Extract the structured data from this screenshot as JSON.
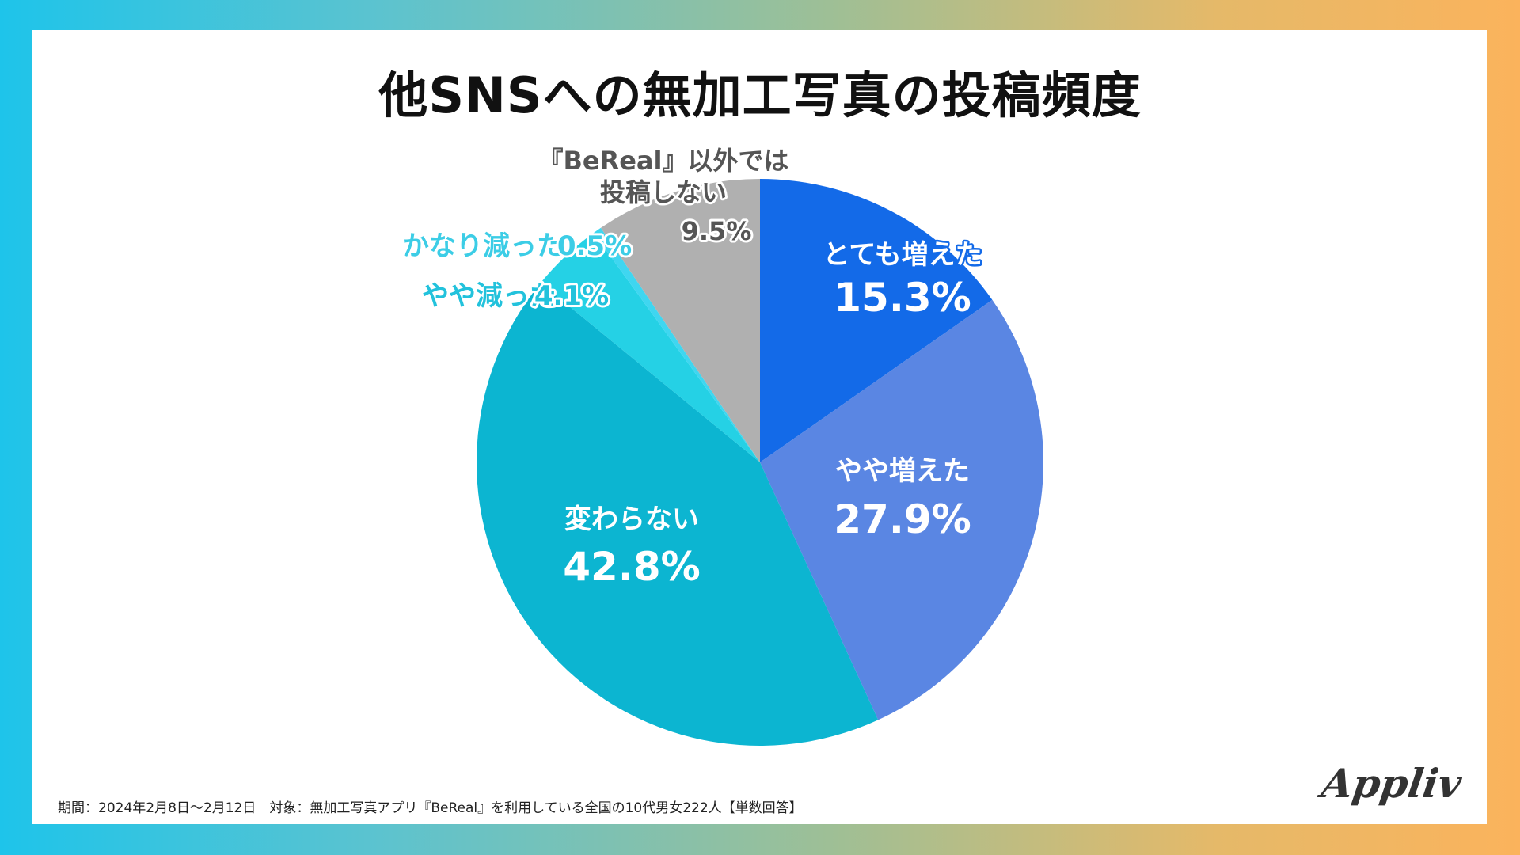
{
  "colors": {
    "very_increased": "#136ae8",
    "slightly_increased": "#5a86e3",
    "unchanged": "#0cb5d1",
    "slightly_decreased": "#25d1e5",
    "greatly_decreased": "#3fd6f0",
    "no_other_sns": "#b0b0b0"
  },
  "chart_data": {
    "type": "pie",
    "title": "他SNSへの無加工写真の投稿頻度",
    "unit": "%",
    "slices": [
      {
        "name": "とても増えた",
        "value": 15.3,
        "value_label": "15.3%",
        "label_lines": [
          "とても増えた"
        ]
      },
      {
        "name": "やや増えた",
        "value": 27.9,
        "value_label": "27.9%",
        "label_lines": [
          "やや増えた"
        ]
      },
      {
        "name": "変わらない",
        "value": 42.8,
        "value_label": "42.8%",
        "label_lines": [
          "変わらない"
        ]
      },
      {
        "name": "やや減った",
        "value": 4.1,
        "value_label": "4.1%",
        "label_lines": [
          "やや減った"
        ]
      },
      {
        "name": "かなり減った",
        "value": 0.5,
        "value_label": "0.5%",
        "label_lines": [
          "かなり減った"
        ]
      },
      {
        "name": "『BeReal』以外では投稿しない",
        "value": 9.5,
        "value_label": "9.5%",
        "label_lines": [
          "『BeReal』以外では",
          "投稿しない"
        ]
      }
    ],
    "start": "12 o'clock",
    "direction": "clockwise"
  },
  "footnote": "期間：2024年2月8日〜2月12日　対象：無加工写真アプリ『BeReal』を利用している全国の10代男女222人【単数回答】",
  "logo_text": "Appliv"
}
